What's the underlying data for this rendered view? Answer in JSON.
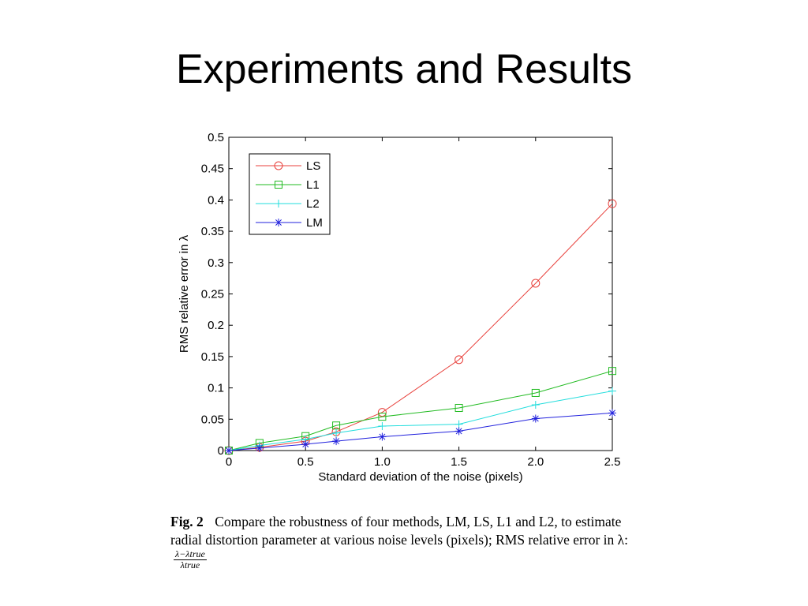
{
  "slide": {
    "title": "Experiments and Results"
  },
  "chart_data": {
    "type": "line",
    "title": "",
    "xlabel": "Standard deviation of the noise (pixels)",
    "ylabel": "RMS relative error in λ",
    "x": [
      0,
      0.2,
      0.5,
      0.7,
      1.0,
      1.5,
      2.0,
      2.5
    ],
    "xlim": [
      0,
      2.5
    ],
    "ylim": [
      0,
      0.5
    ],
    "xticks": [
      "0",
      "0.5",
      "1.0",
      "1.5",
      "2.0",
      "2.5"
    ],
    "xtick_values": [
      0,
      0.5,
      1.0,
      1.5,
      2.0,
      2.5
    ],
    "yticks": [
      "0",
      "0.05",
      "0.1",
      "0.15",
      "0.2",
      "0.25",
      "0.3",
      "0.35",
      "0.4",
      "0.45",
      "0.5"
    ],
    "ytick_values": [
      0,
      0.05,
      0.1,
      0.15,
      0.2,
      0.25,
      0.3,
      0.35,
      0.4,
      0.45,
      0.5
    ],
    "grid": false,
    "legend_position": "top-left",
    "series": [
      {
        "name": "LS",
        "color": "#e8413c",
        "marker": "circle",
        "values": [
          0,
          0.005,
          0.015,
          0.03,
          0.061,
          0.145,
          0.267,
          0.394
        ]
      },
      {
        "name": "L1",
        "color": "#22bb22",
        "marker": "square",
        "values": [
          0,
          0.012,
          0.023,
          0.04,
          0.054,
          0.068,
          0.092,
          0.127
        ]
      },
      {
        "name": "L2",
        "color": "#22dddd",
        "marker": "plus",
        "values": [
          0,
          0.008,
          0.018,
          0.028,
          0.039,
          0.042,
          0.073,
          0.095
        ]
      },
      {
        "name": "LM",
        "color": "#2222dd",
        "marker": "star",
        "values": [
          0,
          0.004,
          0.01,
          0.015,
          0.022,
          0.031,
          0.051,
          0.06
        ]
      }
    ]
  },
  "caption": {
    "fig_label": "Fig. 2",
    "text": "Compare the robustness of four methods, LM, LS, L1 and L2, to estimate radial distortion parameter at various noise levels (pixels); RMS relative error in λ:",
    "frac_num": "λ−λtrue",
    "frac_den": "λtrue"
  }
}
